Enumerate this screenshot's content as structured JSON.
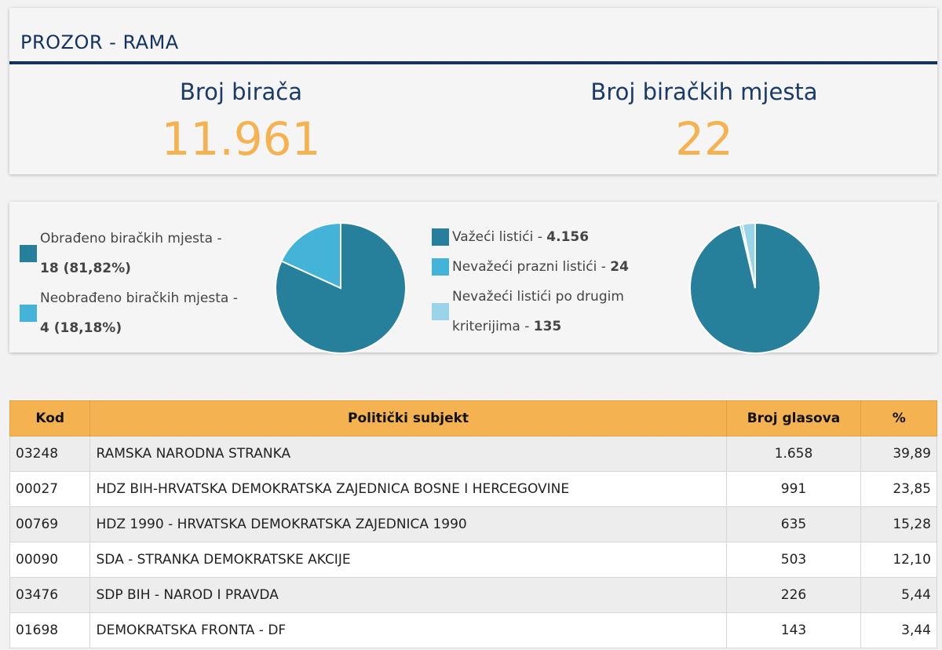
{
  "header": {
    "title": "PROZOR - RAMA",
    "voters_label": "Broj birača",
    "voters_value": "11.961",
    "stations_label": "Broj biračkih mjesta",
    "stations_value": "22"
  },
  "colors": {
    "dark_teal": "#26809c",
    "light_blue": "#43b3d8",
    "pale_blue": "#99d4e8",
    "orange": "#f4b350",
    "navy": "#13325f"
  },
  "stations_legend": [
    {
      "label": "Obrađeno biračkih mjesta - ",
      "value": "18 (81,82%)",
      "color": "#26809c"
    },
    {
      "label": "Neobrađeno biračkih mjesta - ",
      "value": "4 (18,18%)",
      "color": "#43b3d8"
    }
  ],
  "ballots_legend": [
    {
      "label": "Važeći listići - ",
      "value": "4.156",
      "color": "#26809c"
    },
    {
      "label": "Nevažeći prazni listići - ",
      "value": "24",
      "color": "#43b3d8"
    },
    {
      "label": "Nevažeći listići po drugim kriterijima - ",
      "value": "135",
      "color": "#99d4e8"
    }
  ],
  "chart_data": [
    {
      "type": "pie",
      "slices": [
        {
          "label": "Obrađeno biračkih mjesta",
          "value": 18,
          "color": "#26809c"
        },
        {
          "label": "Neobrađeno biračkih mjesta",
          "value": 4,
          "color": "#43b3d8"
        }
      ]
    },
    {
      "type": "pie",
      "slices": [
        {
          "label": "Važeći listići",
          "value": 4156,
          "color": "#26809c"
        },
        {
          "label": "Nevažeći prazni listići",
          "value": 24,
          "color": "#43b3d8"
        },
        {
          "label": "Nevažeći listići po drugim kriterijima",
          "value": 135,
          "color": "#99d4e8"
        }
      ]
    }
  ],
  "table": {
    "headers": {
      "kod": "Kod",
      "subject": "Politički subjekt",
      "votes": "Broj glasova",
      "pct": "%"
    },
    "rows": [
      {
        "kod": "03248",
        "subject": "RAMSKA NARODNA STRANKA",
        "votes": "1.658",
        "pct": "39,89"
      },
      {
        "kod": "00027",
        "subject": "HDZ BIH-HRVATSKA DEMOKRATSKA ZAJEDNICA BOSNE I HERCEGOVINE",
        "votes": "991",
        "pct": "23,85"
      },
      {
        "kod": "00769",
        "subject": "HDZ 1990 - HRVATSKA DEMOKRATSKA ZAJEDNICA 1990",
        "votes": "635",
        "pct": "15,28"
      },
      {
        "kod": "00090",
        "subject": "SDA - STRANKA DEMOKRATSKE AKCIJE",
        "votes": "503",
        "pct": "12,10"
      },
      {
        "kod": "03476",
        "subject": "SDP BIH - NAROD I PRAVDA",
        "votes": "226",
        "pct": "5,44"
      },
      {
        "kod": "01698",
        "subject": "DEMOKRATSKA FRONTA - DF",
        "votes": "143",
        "pct": "3,44"
      }
    ]
  }
}
